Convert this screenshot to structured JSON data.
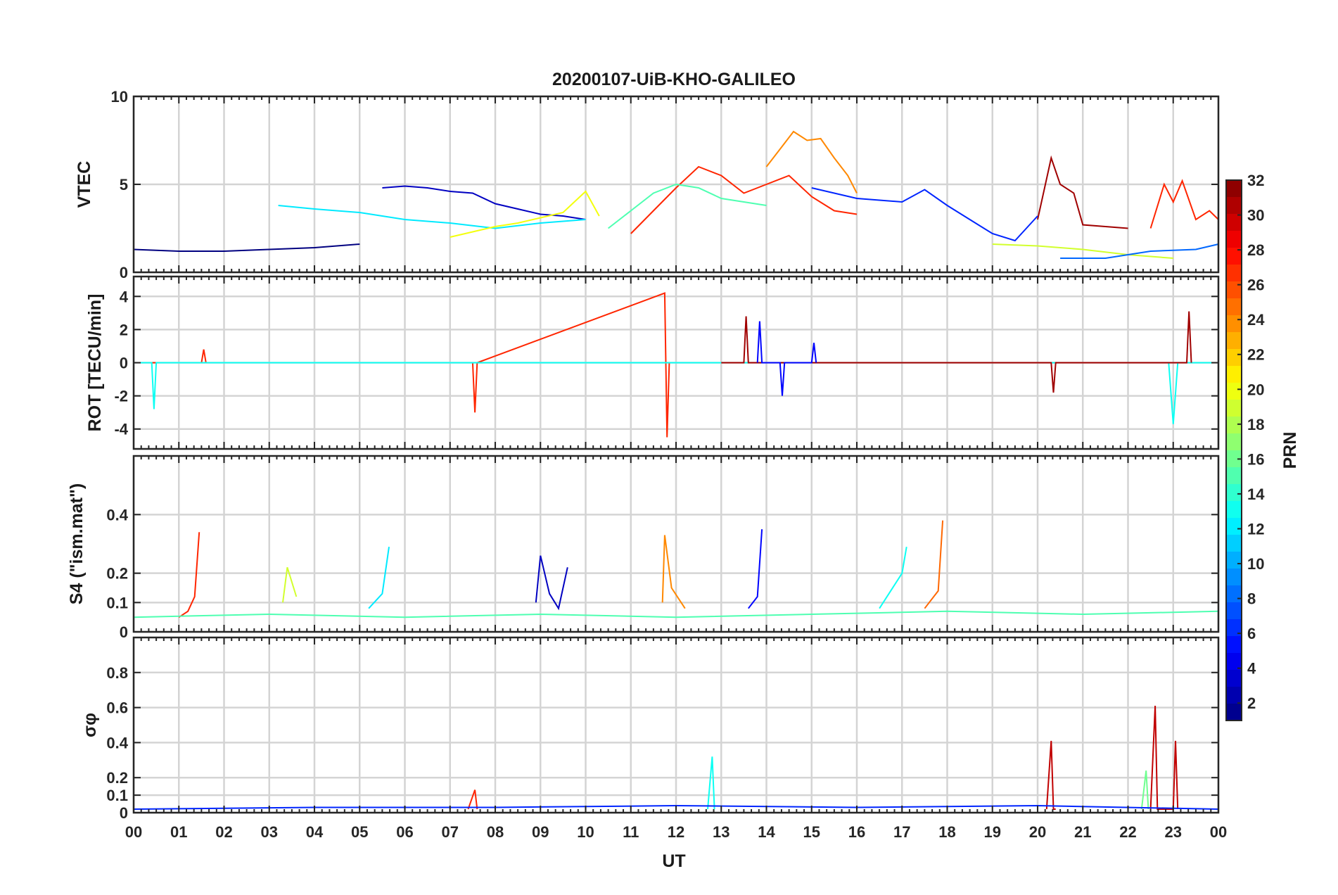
{
  "title": "20200107-UiB-KHO-GALILEO",
  "chart_data": [
    {
      "type": "line",
      "panel": "vtec",
      "ylabel": "VTEC",
      "ylim": [
        0,
        10
      ],
      "yticks": [
        0,
        5,
        10
      ],
      "grid": true,
      "series": [
        {
          "prn": 3,
          "x": [
            5.5,
            6.0,
            6.5,
            7.0,
            7.5,
            8.0,
            8.5,
            9.0,
            9.5,
            10.0
          ],
          "y": [
            4.8,
            4.9,
            4.8,
            4.6,
            4.5,
            3.9,
            3.6,
            3.3,
            3.2,
            3.0
          ]
        },
        {
          "prn": 1,
          "x": [
            0,
            1,
            2,
            3,
            4,
            5
          ],
          "y": [
            1.3,
            1.2,
            1.2,
            1.3,
            1.4,
            1.6
          ]
        },
        {
          "prn": 27,
          "x": [
            11,
            11.5,
            12,
            12.5,
            13,
            13.5,
            14,
            14.5,
            15,
            15.5,
            16
          ],
          "y": [
            2.2,
            3.5,
            4.8,
            6.0,
            5.5,
            4.5,
            5.0,
            5.5,
            4.3,
            3.5,
            3.3
          ]
        },
        {
          "prn": 24,
          "x": [
            14.0,
            14.3,
            14.6,
            14.9,
            15.2,
            15.5,
            15.8,
            16.0
          ],
          "y": [
            6.0,
            7.0,
            8.0,
            7.5,
            7.6,
            6.5,
            5.5,
            4.5
          ]
        },
        {
          "prn": 31,
          "x": [
            20.0,
            20.3,
            20.5,
            20.8,
            21.0,
            21.5,
            22.0
          ],
          "y": [
            3.0,
            6.5,
            5.0,
            4.5,
            2.7,
            2.6,
            2.5
          ]
        },
        {
          "prn": 12,
          "x": [
            3.2,
            4.0,
            5.0,
            6.0,
            7.0,
            8.0,
            9.0,
            10.0
          ],
          "y": [
            3.8,
            3.6,
            3.4,
            3.0,
            2.8,
            2.5,
            2.8,
            3.0
          ]
        },
        {
          "prn": 20,
          "x": [
            7.0,
            7.5,
            8.0,
            8.5,
            9.0,
            9.5,
            10.0,
            10.3
          ],
          "y": [
            2.0,
            2.3,
            2.6,
            2.8,
            3.1,
            3.4,
            4.6,
            3.2
          ]
        },
        {
          "prn": 15,
          "x": [
            10.5,
            11,
            11.5,
            12,
            12.5,
            13,
            13.5,
            14
          ],
          "y": [
            2.5,
            3.5,
            4.5,
            5.0,
            4.8,
            4.2,
            4.0,
            3.8
          ]
        },
        {
          "prn": 6,
          "x": [
            15,
            16,
            17,
            17.5,
            18,
            18.5,
            19,
            19.5,
            20
          ],
          "y": [
            4.8,
            4.2,
            4.0,
            4.7,
            3.8,
            3.0,
            2.2,
            1.8,
            3.2
          ]
        },
        {
          "prn": 27,
          "x": [
            22.5,
            22.8,
            23.0,
            23.2,
            23.5,
            23.8,
            24.0
          ],
          "y": [
            2.5,
            5.0,
            4.0,
            5.2,
            3.0,
            3.5,
            3.0
          ]
        },
        {
          "prn": 19,
          "x": [
            19.0,
            20.0,
            21.0,
            22.0,
            23.0
          ],
          "y": [
            1.6,
            1.5,
            1.3,
            1.0,
            0.8
          ]
        },
        {
          "prn": 8,
          "x": [
            20.5,
            21.5,
            22.5,
            23.5,
            24.0
          ],
          "y": [
            0.8,
            0.8,
            1.2,
            1.3,
            1.6
          ]
        }
      ]
    },
    {
      "type": "line",
      "panel": "rot",
      "ylabel": "ROT [TECU/min]",
      "ylim": [
        -5.2,
        5.2
      ],
      "yticks": [
        -4,
        -2,
        0,
        2,
        4
      ],
      "grid": true,
      "series": [
        {
          "prn": 27,
          "x": [
            0,
            1.5,
            1.55,
            1.6,
            7.5,
            7.55,
            7.6,
            11.75,
            11.8,
            11.85,
            12.5,
            24
          ],
          "y": [
            0,
            0,
            0.8,
            0,
            0,
            -3.0,
            0,
            4.2,
            -4.5,
            0,
            0,
            0
          ]
        },
        {
          "prn": 13,
          "x": [
            0,
            0.4,
            0.45,
            0.5,
            22.9,
            23.0,
            23.1,
            24
          ],
          "y": [
            0,
            0,
            -2.8,
            0,
            0,
            -3.7,
            0,
            0
          ]
        },
        {
          "prn": 31,
          "x": [
            13,
            13.5,
            13.55,
            13.6,
            20.3,
            20.35,
            20.4,
            23.3,
            23.35,
            23.4
          ],
          "y": [
            0,
            0,
            2.8,
            0,
            0,
            -1.8,
            0,
            0,
            3.1,
            0
          ]
        },
        {
          "prn": 5,
          "x": [
            13.8,
            13.85,
            13.9,
            14.3,
            14.35,
            14.4,
            15.0,
            15.05,
            15.1
          ],
          "y": [
            0,
            2.5,
            0,
            0,
            -2.0,
            0,
            0,
            1.2,
            0
          ]
        }
      ]
    },
    {
      "type": "line",
      "panel": "s4",
      "ylabel": "S4 (\"ism.mat\")",
      "ylim": [
        0,
        0.6
      ],
      "yticks": [
        0,
        0.1,
        0.2,
        0.4
      ],
      "grid": true,
      "series": [
        {
          "prn": 27,
          "x": [
            1.0,
            1.2,
            1.35,
            1.45
          ],
          "y": [
            0.05,
            0.07,
            0.12,
            0.34
          ]
        },
        {
          "prn": 3,
          "x": [
            8.9,
            9.0,
            9.2,
            9.4,
            9.6
          ],
          "y": [
            0.1,
            0.26,
            0.13,
            0.08,
            0.22
          ]
        },
        {
          "prn": 24,
          "x": [
            11.7,
            11.75,
            11.9,
            12.2
          ],
          "y": [
            0.1,
            0.33,
            0.15,
            0.08
          ]
        },
        {
          "prn": 5,
          "x": [
            13.6,
            13.8,
            13.9
          ],
          "y": [
            0.08,
            0.12,
            0.35
          ]
        },
        {
          "prn": 12,
          "x": [
            5.2,
            5.5,
            5.65
          ],
          "y": [
            0.08,
            0.13,
            0.29
          ]
        },
        {
          "prn": 13,
          "x": [
            16.5,
            17.0,
            17.1
          ],
          "y": [
            0.08,
            0.2,
            0.29
          ]
        },
        {
          "prn": 25,
          "x": [
            17.5,
            17.8,
            17.9
          ],
          "y": [
            0.08,
            0.14,
            0.38
          ]
        },
        {
          "prn": 19,
          "x": [
            3.3,
            3.4,
            3.6
          ],
          "y": [
            0.1,
            0.22,
            0.12
          ]
        },
        {
          "prn": 15,
          "x": [
            0,
            3,
            6,
            9,
            12,
            15,
            18,
            21,
            24
          ],
          "y": [
            0.05,
            0.06,
            0.05,
            0.06,
            0.05,
            0.06,
            0.07,
            0.06,
            0.07
          ]
        }
      ]
    },
    {
      "type": "line",
      "panel": "sigma_phi",
      "ylabel": "σφ",
      "ylim": [
        0,
        1.0
      ],
      "yticks": [
        0,
        0.1,
        0.2,
        0.4,
        0.6,
        0.8
      ],
      "grid": true,
      "series": [
        {
          "prn": 30,
          "x": [
            20.2,
            20.3,
            20.35,
            20.4
          ],
          "y": [
            0.02,
            0.41,
            0.02,
            0.02
          ]
        },
        {
          "prn": 30,
          "x": [
            22.5,
            22.6,
            22.65,
            23.0,
            23.05,
            23.1
          ],
          "y": [
            0.02,
            0.61,
            0.02,
            0.02,
            0.41,
            0.02
          ]
        },
        {
          "prn": 16,
          "x": [
            22.3,
            22.4,
            22.45
          ],
          "y": [
            0.02,
            0.24,
            0.02
          ]
        },
        {
          "prn": 13,
          "x": [
            12.7,
            12.8,
            12.85
          ],
          "y": [
            0.02,
            0.32,
            0.02
          ]
        },
        {
          "prn": 27,
          "x": [
            7.4,
            7.55,
            7.6
          ],
          "y": [
            0.02,
            0.13,
            0.02
          ]
        },
        {
          "prn": 6,
          "x": [
            0,
            4,
            8,
            12,
            16,
            20,
            24
          ],
          "y": [
            0.02,
            0.03,
            0.03,
            0.04,
            0.03,
            0.04,
            0.02
          ]
        }
      ]
    }
  ],
  "xaxis": {
    "xlabel": "UT",
    "xlim": [
      0,
      24
    ],
    "tick_labels": [
      "00",
      "01",
      "02",
      "03",
      "04",
      "05",
      "06",
      "07",
      "08",
      "09",
      "10",
      "11",
      "12",
      "13",
      "14",
      "15",
      "16",
      "17",
      "18",
      "19",
      "20",
      "21",
      "22",
      "23",
      "00"
    ]
  },
  "colorbar": {
    "label": "PRN",
    "clim": [
      1,
      32
    ],
    "tick_labels": [
      "2",
      "4",
      "6",
      "8",
      "10",
      "12",
      "14",
      "16",
      "18",
      "20",
      "22",
      "24",
      "26",
      "28",
      "30",
      "32"
    ]
  }
}
